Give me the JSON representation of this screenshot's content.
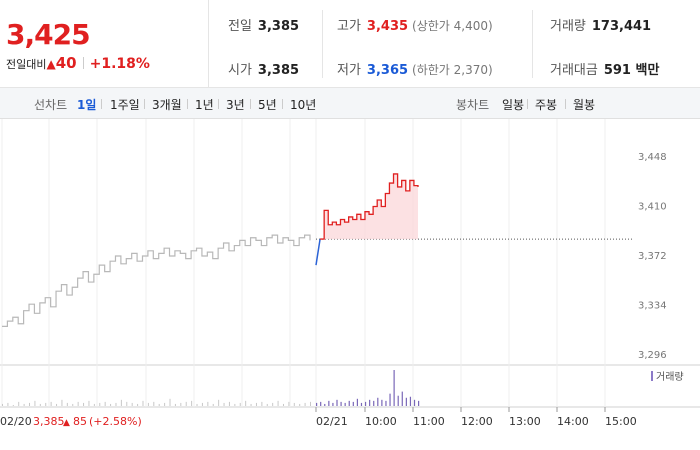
{
  "quote": {
    "price": "3,425",
    "change_label": "전일대비",
    "change_arrow": "▲",
    "change_value": "40",
    "change_rate": "+1.18%"
  },
  "info": {
    "prev_close_label": "전일",
    "prev_close": "3,385",
    "open_label": "시가",
    "open": "3,385",
    "high_label": "고가",
    "high": "3,435",
    "upper_limit": "(상한가 4,400)",
    "low_label": "저가",
    "low": "3,365",
    "lower_limit": "(하한가 2,370)",
    "volume_label": "거래량",
    "volume": "173,441",
    "amount_label": "거래대금",
    "amount": "591 백만"
  },
  "periods": {
    "line_label": "선차트",
    "line_items": [
      "1일",
      "1주일",
      "3개월",
      "1년",
      "3년",
      "5년",
      "10년"
    ],
    "active": "1일",
    "candle_label": "봉차트",
    "candle_items": [
      "일봉",
      "주봉",
      "월봉"
    ]
  },
  "chart_data": {
    "type": "line",
    "y_ticks": [
      "3,448",
      "3,410",
      "3,372",
      "3,334",
      "3,296"
    ],
    "ylim": [
      3296,
      3448
    ],
    "x_ticks": [
      "02/21",
      "10:00",
      "11:00",
      "12:00",
      "13:00",
      "14:00",
      "15:00"
    ],
    "prev_day_label": "02/20",
    "prev_day_close": "3,385",
    "prev_day_arrow": "▲",
    "prev_day_change": "85",
    "prev_day_rate": "(+2.58%)",
    "reference_price": 3385,
    "volume_legend": "거래량",
    "prev_day_series": [
      3318,
      3322,
      3325,
      3320,
      3330,
      3335,
      3328,
      3336,
      3340,
      3333,
      3345,
      3350,
      3342,
      3348,
      3355,
      3360,
      3352,
      3358,
      3365,
      3360,
      3368,
      3372,
      3366,
      3370,
      3374,
      3368,
      3372,
      3376,
      3370,
      3374,
      3378,
      3372,
      3376,
      3374,
      3370,
      3376,
      3378,
      3372,
      3375,
      3370,
      3378,
      3382,
      3376,
      3380,
      3384,
      3380,
      3386,
      3384,
      3380,
      3386,
      3388,
      3382,
      3386,
      3384,
      3380,
      3386,
      3388,
      3384
    ],
    "today_series": [
      3365,
      3385,
      3407,
      3396,
      3398,
      3396,
      3400,
      3398,
      3402,
      3400,
      3404,
      3400,
      3406,
      3404,
      3410,
      3415,
      3410,
      3420,
      3428,
      3435,
      3425,
      3430,
      3422,
      3430,
      3426,
      3425
    ],
    "prev_day_volume": [
      2,
      3,
      1,
      4,
      2,
      3,
      5,
      2,
      3,
      4,
      2,
      6,
      3,
      2,
      4,
      3,
      5,
      2,
      3,
      4,
      2,
      3,
      6,
      4,
      3,
      2,
      5,
      3,
      4,
      2,
      3,
      7,
      2,
      3,
      4,
      5,
      2,
      3,
      4,
      2,
      6,
      3,
      4,
      2,
      3,
      5,
      2,
      3,
      4,
      2,
      3,
      5,
      2,
      4,
      3,
      2,
      3,
      4
    ],
    "today_volume": [
      3,
      4,
      2,
      5,
      3,
      6,
      4,
      3,
      5,
      4,
      7,
      3,
      4,
      6,
      5,
      8,
      6,
      5,
      12,
      35,
      10,
      14,
      8,
      9,
      6,
      5
    ]
  }
}
